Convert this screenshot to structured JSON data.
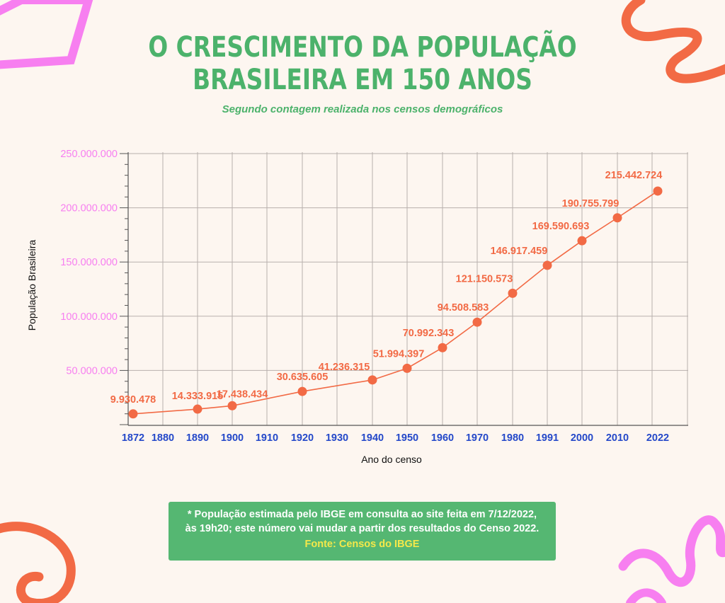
{
  "title_lines": [
    "O CRESCIMENTO DA POPULAÇÃO",
    "BRASILEIRA EM 150 ANOS"
  ],
  "subtitle": "Segundo contagem realizada nos censos demográficos",
  "note": {
    "line1": "* População estimada pelo IBGE em consulta ao site feita em 7/12/2022,",
    "line2": "às 19h20; este número vai mudar a partir dos resultados do Censo 2022.",
    "source": "Fonte: Censos do IBGE"
  },
  "colors": {
    "title": "#4cb26b",
    "line": "#f26a45",
    "y_ticks": "#f77ff0",
    "x_ticks": "#2448c9",
    "note_bg": "#55b772",
    "source": "#f4e84a",
    "decor_pink": "#f77ff0",
    "decor_orange": "#f26a45"
  },
  "chart_data": {
    "type": "line",
    "xlabel": "Ano do censo",
    "ylabel": "População Brasileira",
    "ylim": [
      0,
      250000000
    ],
    "y_ticks": [
      50000000,
      100000000,
      150000000,
      200000000,
      250000000
    ],
    "y_tick_labels": [
      "50.000.000",
      "100.000.000",
      "150.000.000",
      "200.000.000",
      "250.000.000"
    ],
    "x_categories": [
      "1872",
      "1880",
      "1890",
      "1900",
      "1910",
      "1920",
      "1930",
      "1940",
      "1950",
      "1960",
      "1970",
      "1980",
      "1991",
      "2000",
      "2010",
      "2022"
    ],
    "grid": true,
    "points": [
      {
        "x": "1872",
        "y": 9930478,
        "label": "9.930.478"
      },
      {
        "x": "1890",
        "y": 14333915,
        "label": "14.333.915"
      },
      {
        "x": "1900",
        "y": 17438434,
        "label": "17.438.434"
      },
      {
        "x": "1920",
        "y": 30635605,
        "label": "30.635.605"
      },
      {
        "x": "1940",
        "y": 41236315,
        "label": "41.236.315"
      },
      {
        "x": "1950",
        "y": 51994397,
        "label": "51.994.397"
      },
      {
        "x": "1960",
        "y": 70992343,
        "label": "70.992.343"
      },
      {
        "x": "1970",
        "y": 94508583,
        "label": "94.508.583"
      },
      {
        "x": "1980",
        "y": 121150573,
        "label": "121.150.573"
      },
      {
        "x": "1991",
        "y": 146917459,
        "label": "146.917.459"
      },
      {
        "x": "2000",
        "y": 169590693,
        "label": "169.590.693"
      },
      {
        "x": "2010",
        "y": 190755799,
        "label": "190.755.799"
      },
      {
        "x": "2022",
        "y": 215442724,
        "label": "215.442.724"
      }
    ]
  }
}
